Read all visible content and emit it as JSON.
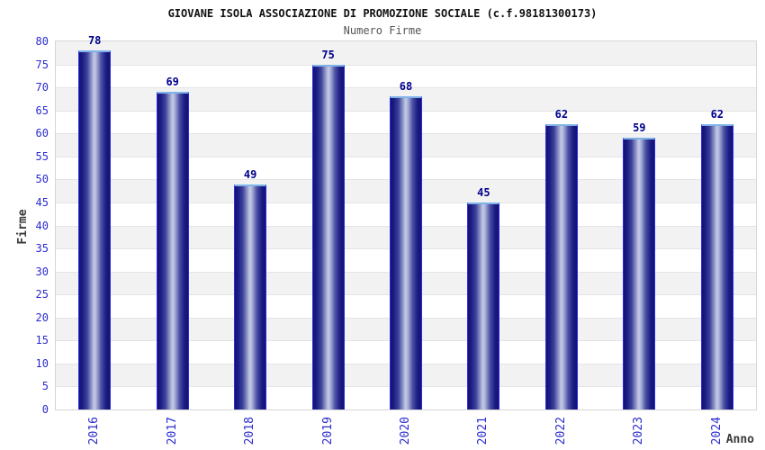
{
  "chart_data": {
    "type": "bar",
    "title": "GIOVANE ISOLA ASSOCIAZIONE DI PROMOZIONE SOCIALE (c.f.98181300173)",
    "subtitle": "Numero Firme",
    "xlabel": "Anno",
    "ylabel": "Firme",
    "categories": [
      "2016",
      "2017",
      "2018",
      "2019",
      "2020",
      "2021",
      "2022",
      "2023",
      "2024"
    ],
    "values": [
      78,
      69,
      49,
      75,
      68,
      45,
      62,
      59,
      62
    ],
    "ylim": [
      0,
      80
    ],
    "ytick_step": 5,
    "grid": "horizontal gridlines every 5 with alternating gray/white bands",
    "legend_position": "none",
    "colors": {
      "bar_dark": "#16167e",
      "bar_light": "#c6cbe6",
      "bar_side_border": "#2a2ae8",
      "bar_top_border": "#7fb2e8",
      "axis_tick_text": "#2b2bd0",
      "value_label_text": "#00008c",
      "title_text": "#111111",
      "subtitle_text": "#555555",
      "axis_title_text": "#3a3a3a",
      "band_gray": "#f2f2f2",
      "band_white": "#ffffff",
      "gridline": "#e4e4e4",
      "plot_border": "#d5d5d5",
      "background": "#ffffff"
    }
  }
}
